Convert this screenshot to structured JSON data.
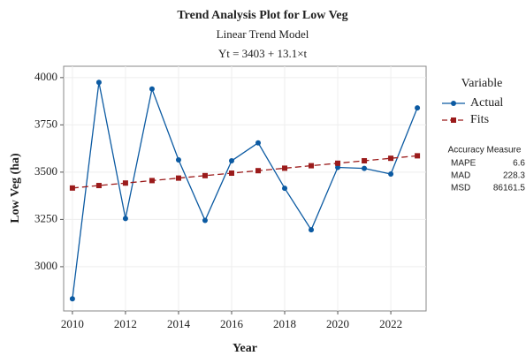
{
  "chart_data": {
    "type": "line",
    "title": "Trend Analysis Plot for Low Veg",
    "subtitle": "Linear Trend Model",
    "equation": "Yt = 3403 + 13.1×t",
    "x_label": "Year",
    "y_label": "Low Veg (ha)",
    "x": [
      2010,
      2011,
      2012,
      2013,
      2014,
      2015,
      2016,
      2017,
      2018,
      2019,
      2020,
      2021,
      2022,
      2023
    ],
    "series": [
      {
        "name": "Actual",
        "color": "#0b5aa2",
        "marker": "circle",
        "dash": false,
        "values": [
          2830,
          3975,
          3255,
          3940,
          3565,
          3245,
          3560,
          3655,
          3415,
          3195,
          3525,
          3520,
          3490,
          3840
        ]
      },
      {
        "name": "Fits",
        "color": "#9b1b1b",
        "marker": "square",
        "dash": true,
        "values": [
          3416.1,
          3429.2,
          3442.3,
          3455.4,
          3468.5,
          3481.6,
          3494.7,
          3507.8,
          3520.9,
          3534,
          3547.1,
          3560.2,
          3573.3,
          3586.4
        ]
      }
    ],
    "legend_title": "Variable",
    "xlim": [
      2009.67,
      2023.33
    ],
    "xticks": [
      2010,
      2012,
      2014,
      2016,
      2018,
      2020,
      2022
    ],
    "ylim": [
      2766,
      4060
    ],
    "yticks": [
      3000,
      3250,
      3500,
      3750,
      4000
    ],
    "grid": true,
    "accuracy": {
      "title": "Accuracy Measure",
      "rows": [
        {
          "label": "MAPE",
          "value": 6.6
        },
        {
          "label": "MAD",
          "value": 228.3
        },
        {
          "label": "MSD",
          "value": 86161.5
        }
      ]
    }
  }
}
